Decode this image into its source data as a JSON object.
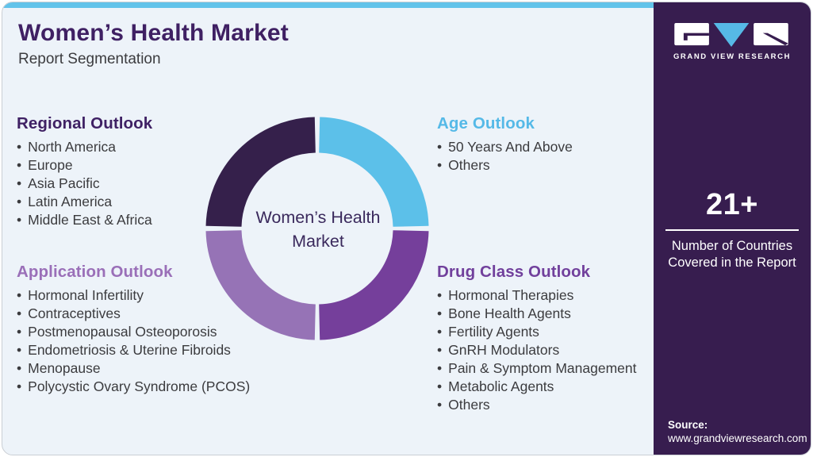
{
  "page": {
    "title": "Women’s Health Market",
    "subtitle": "Report Segmentation"
  },
  "chart": {
    "type": "donut",
    "center_line1": "Women’s Health",
    "center_line2": "Market",
    "segments": [
      {
        "name": "Regional Outlook",
        "position": "top-left",
        "color": "#35204b"
      },
      {
        "name": "Age Outlook",
        "position": "top-right",
        "color": "#5cc0e9"
      },
      {
        "name": "Drug Class Outlook",
        "position": "bottom-right",
        "color": "#753f9b"
      },
      {
        "name": "Application Outlook",
        "position": "bottom-left",
        "color": "#9673b6"
      }
    ]
  },
  "sections": {
    "regional": {
      "title": "Regional Outlook",
      "color": "#3f2164",
      "items": [
        "North America",
        "Europe",
        "Asia Pacific",
        "Latin America",
        "Middle East & Africa"
      ]
    },
    "age": {
      "title": "Age Outlook",
      "color": "#55b9e7",
      "items": [
        "50 Years And Above",
        "Others"
      ]
    },
    "application": {
      "title": "Application Outlook",
      "color": "#9a6fb8",
      "items": [
        "Hormonal Infertility",
        "Contraceptives",
        "Postmenopausal Osteoporosis",
        "Endometriosis & Uterine Fibroids",
        "Menopause",
        "Polycystic Ovary Syndrome (PCOS)"
      ]
    },
    "drug_class": {
      "title": "Drug Class Outlook",
      "color": "#71409c",
      "items": [
        "Hormonal Therapies",
        "Bone Health Agents",
        "Fertility Agents",
        "GnRH Modulators",
        "Pain & Symptom Management",
        "Metabolic Agents",
        "Others"
      ]
    }
  },
  "sidebar": {
    "brand": "GRAND VIEW RESEARCH",
    "stat_value": "21+",
    "stat_label_line1": "Number of Countries",
    "stat_label_line2": "Covered in the Report",
    "source_label": "Source:",
    "source_url": "www.grandviewresearch.com",
    "background": "#371d4f",
    "accent": "#56b9e6"
  },
  "theme": {
    "topbar": "#62c3ea",
    "card_background": "#edf3f9",
    "body_text": "#3b3b3e"
  }
}
